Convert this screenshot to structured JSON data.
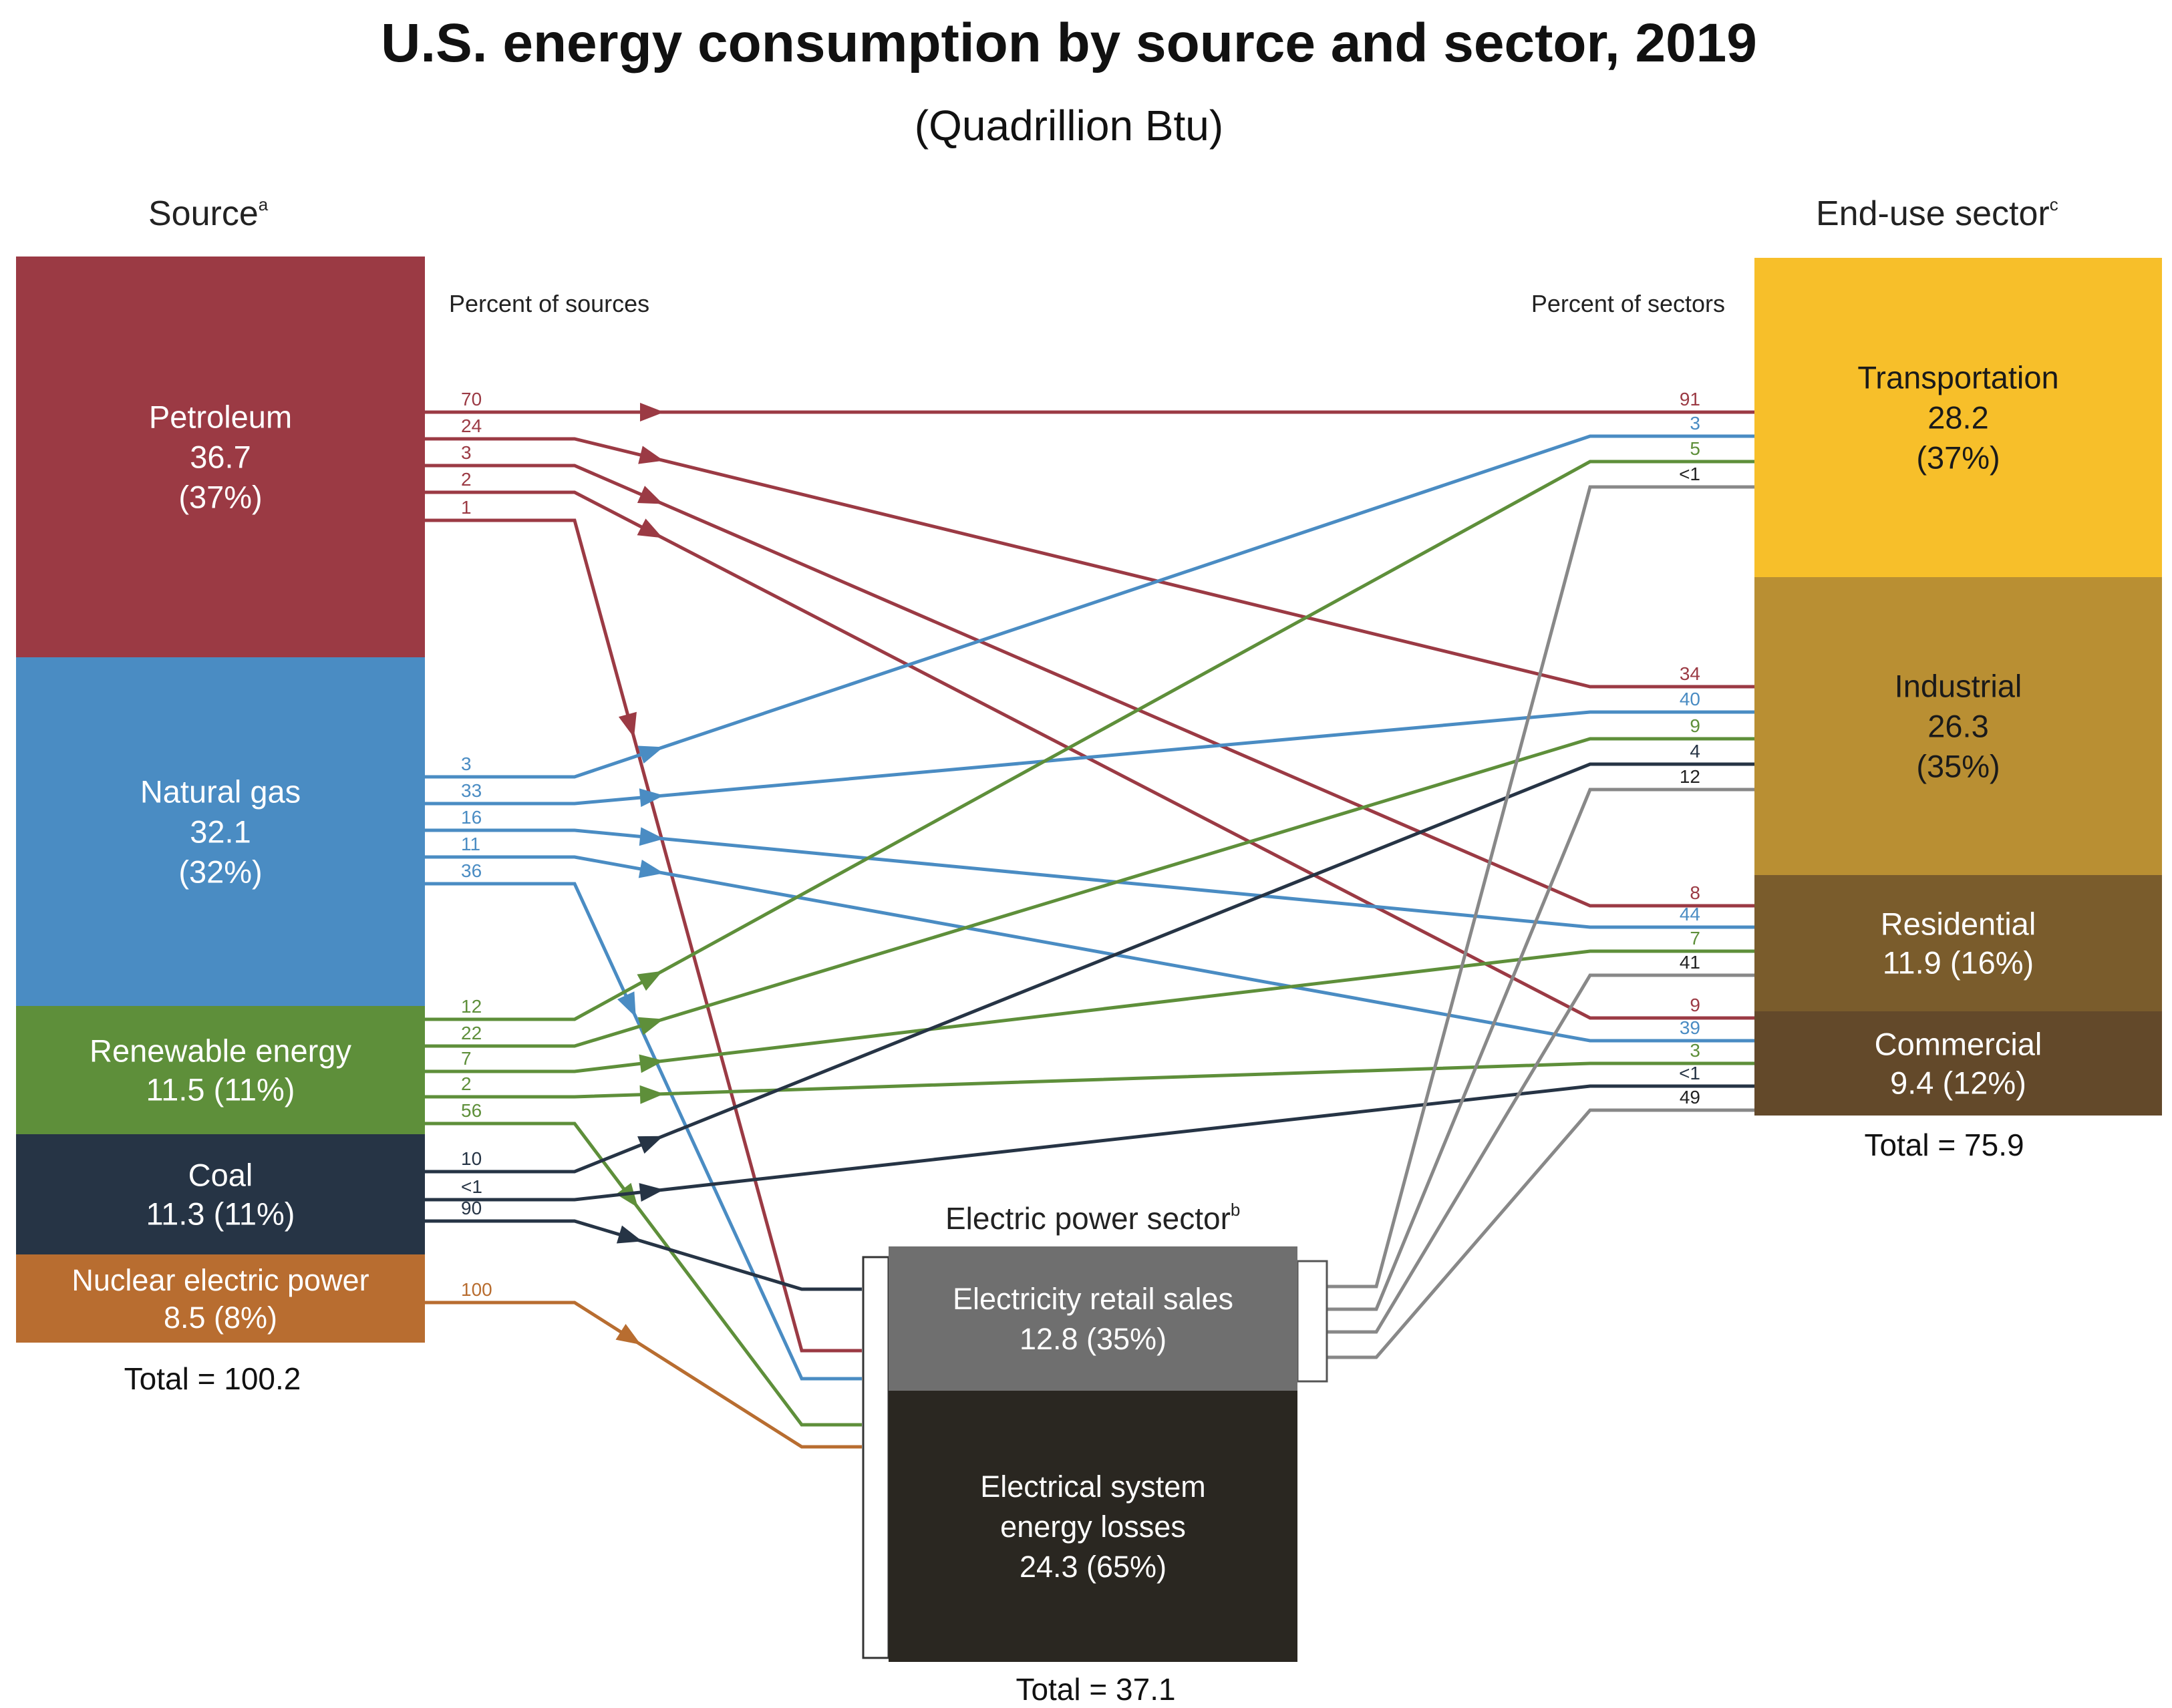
{
  "title": "U.S. energy consumption by source and sector, 2019",
  "subtitle": "(Quadrillion Btu)",
  "headers": {
    "source": "Source",
    "source_sup": "a",
    "sector": "End-use sector",
    "sector_sup": "c",
    "electric": "Electric power sector",
    "electric_sup": "b",
    "percent_sources": "Percent of sources",
    "percent_sectors": "Percent of sectors"
  },
  "sources": [
    {
      "id": "petroleum",
      "lines": [
        "Petroleum",
        "36.7",
        "(37%)"
      ],
      "color": "#9b3a44"
    },
    {
      "id": "natural-gas",
      "lines": [
        "Natural gas",
        "32.1",
        "(32%)"
      ],
      "color": "#4a8cc3"
    },
    {
      "id": "renewable",
      "lines": [
        "Renewable energy",
        "11.5 (11%)"
      ],
      "color": "#5e8f3a"
    },
    {
      "id": "coal",
      "lines": [
        "Coal",
        "11.3 (11%)"
      ],
      "color": "#263445"
    },
    {
      "id": "nuclear",
      "lines": [
        "Nuclear electric power",
        "8.5 (8%)"
      ],
      "color": "#b86d30"
    }
  ],
  "sectors": [
    {
      "id": "transportation",
      "lines": [
        "Transportation",
        "28.2",
        "(37%)"
      ],
      "color": "#f7bf2a"
    },
    {
      "id": "industrial",
      "lines": [
        "Industrial",
        "26.3",
        "(35%)"
      ],
      "color": "#b98f33"
    },
    {
      "id": "residential",
      "lines": [
        "Residential",
        "11.9 (16%)"
      ],
      "color": "#7a5c2c"
    },
    {
      "id": "commercial",
      "lines": [
        "Commercial",
        "9.4 (12%)"
      ],
      "color": "#63492a"
    }
  ],
  "electric": [
    {
      "id": "retail-sales",
      "lines": [
        "Electricity retail sales",
        "12.8 (35%)"
      ],
      "color": "#6f6f6f"
    },
    {
      "id": "losses",
      "lines": [
        "Electrical system",
        "energy losses",
        "24.3 (65%)"
      ],
      "color": "#2a2721"
    }
  ],
  "totals": {
    "sources": "Total = 100.2",
    "sectors": "Total = 75.9",
    "electric": "Total = 37.1"
  },
  "flows": [
    {
      "from": "petroleum",
      "to": "transportation",
      "src_pct": "70",
      "dst_pct": "91",
      "color": "#9b3a44"
    },
    {
      "from": "petroleum",
      "to": "industrial",
      "src_pct": "24",
      "dst_pct": "34",
      "color": "#9b3a44"
    },
    {
      "from": "petroleum",
      "to": "residential",
      "src_pct": "3",
      "dst_pct": "8",
      "color": "#9b3a44"
    },
    {
      "from": "petroleum",
      "to": "commercial",
      "src_pct": "2",
      "dst_pct": "9",
      "color": "#9b3a44"
    },
    {
      "from": "petroleum",
      "to": "electric",
      "src_pct": "1",
      "dst_pct": "",
      "color": "#9b3a44"
    },
    {
      "from": "natural-gas",
      "to": "transportation",
      "src_pct": "3",
      "dst_pct": "3",
      "color": "#4a8cc3"
    },
    {
      "from": "natural-gas",
      "to": "industrial",
      "src_pct": "33",
      "dst_pct": "40",
      "color": "#4a8cc3"
    },
    {
      "from": "natural-gas",
      "to": "residential",
      "src_pct": "16",
      "dst_pct": "44",
      "color": "#4a8cc3"
    },
    {
      "from": "natural-gas",
      "to": "commercial",
      "src_pct": "11",
      "dst_pct": "39",
      "color": "#4a8cc3"
    },
    {
      "from": "natural-gas",
      "to": "electric",
      "src_pct": "36",
      "dst_pct": "",
      "color": "#4a8cc3"
    },
    {
      "from": "renewable",
      "to": "transportation",
      "src_pct": "12",
      "dst_pct": "5",
      "color": "#5e8f3a"
    },
    {
      "from": "renewable",
      "to": "industrial",
      "src_pct": "22",
      "dst_pct": "9",
      "color": "#5e8f3a"
    },
    {
      "from": "renewable",
      "to": "residential",
      "src_pct": "7",
      "dst_pct": "7",
      "color": "#5e8f3a"
    },
    {
      "from": "renewable",
      "to": "commercial",
      "src_pct": "2",
      "dst_pct": "3",
      "color": "#5e8f3a"
    },
    {
      "from": "renewable",
      "to": "electric",
      "src_pct": "56",
      "dst_pct": "",
      "color": "#5e8f3a"
    },
    {
      "from": "coal",
      "to": "industrial",
      "src_pct": "10",
      "dst_pct": "4",
      "color": "#263445"
    },
    {
      "from": "coal",
      "to": "commercial",
      "src_pct": "<1",
      "dst_pct": "<1",
      "color": "#263445"
    },
    {
      "from": "coal",
      "to": "electric",
      "src_pct": "90",
      "dst_pct": "",
      "color": "#263445"
    },
    {
      "from": "nuclear",
      "to": "electric",
      "src_pct": "100",
      "dst_pct": "",
      "color": "#b86d30"
    },
    {
      "from": "retail-sales",
      "to": "transportation",
      "src_pct": "",
      "dst_pct": "<1",
      "color": "#888888"
    },
    {
      "from": "retail-sales",
      "to": "industrial",
      "src_pct": "",
      "dst_pct": "12",
      "color": "#888888"
    },
    {
      "from": "retail-sales",
      "to": "residential",
      "src_pct": "",
      "dst_pct": "41",
      "color": "#888888"
    },
    {
      "from": "retail-sales",
      "to": "commercial",
      "src_pct": "",
      "dst_pct": "49",
      "color": "#888888"
    }
  ]
}
